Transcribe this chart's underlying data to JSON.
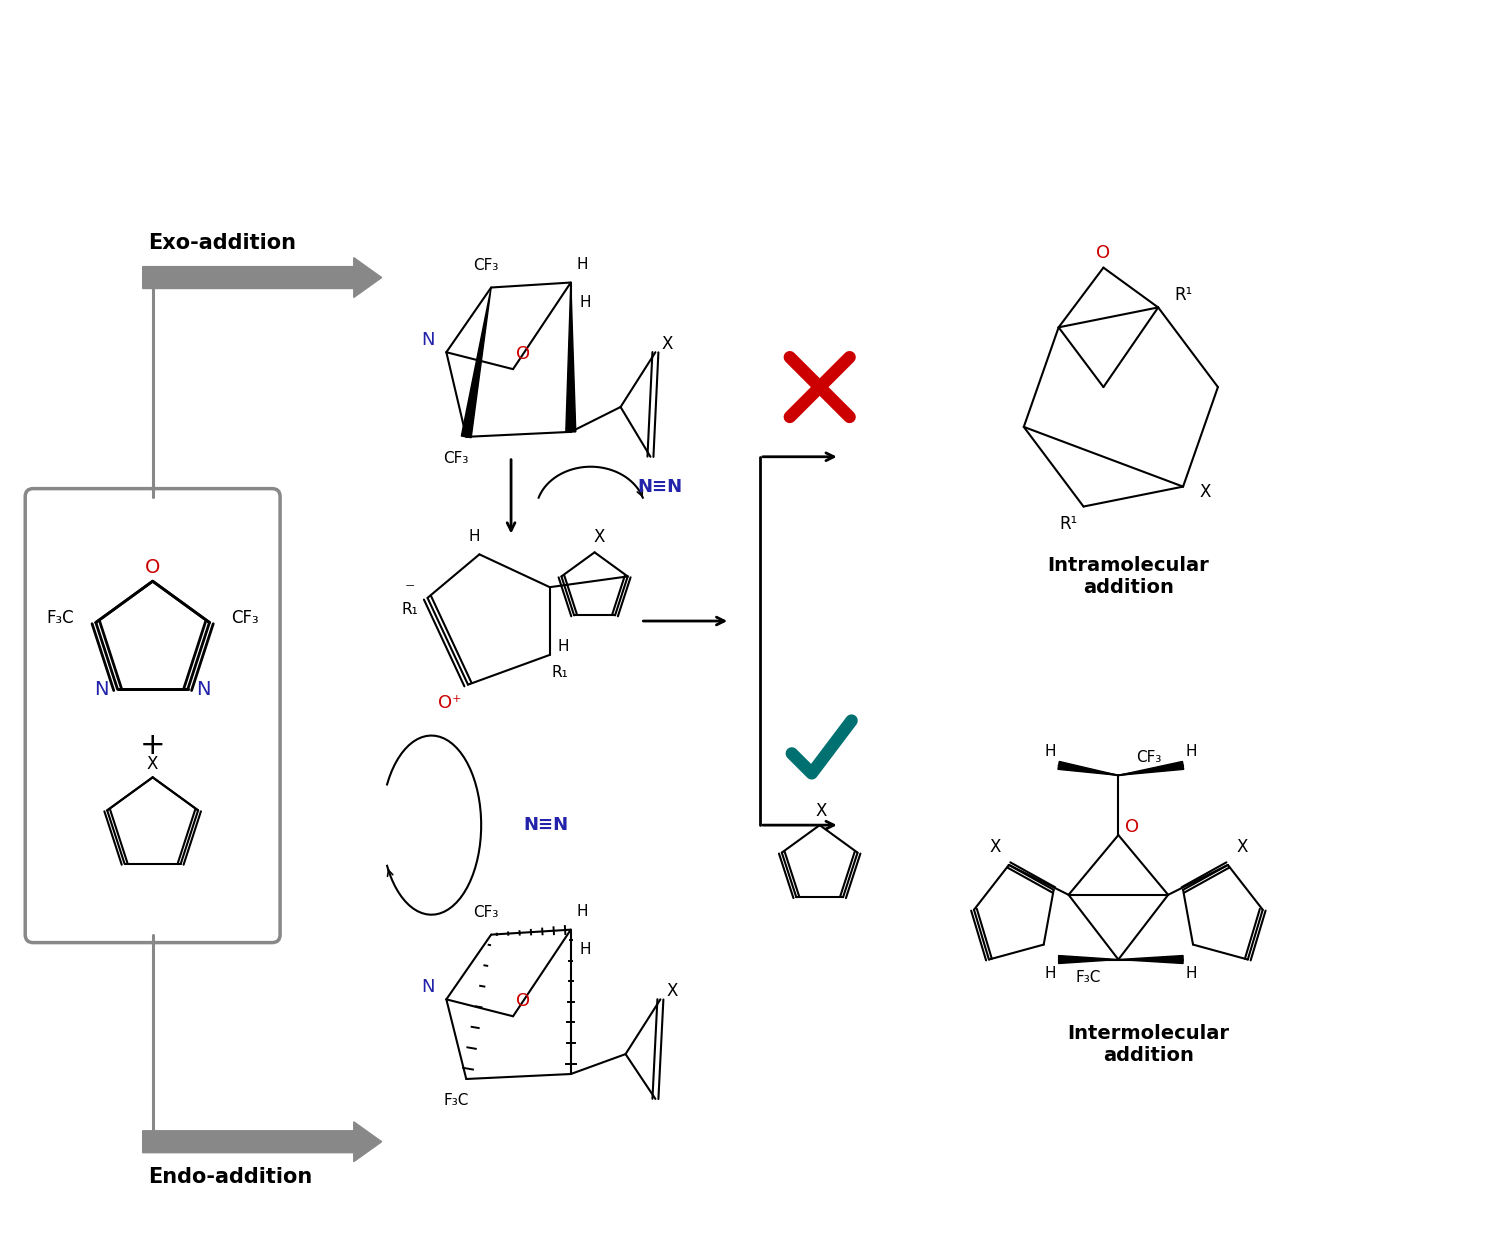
{
  "fig_width": 15.0,
  "fig_height": 12.56,
  "dpi": 100,
  "bg_color": "#ffffff",
  "text_color": "#000000",
  "blue_color": "#2222aa",
  "red_color": "#cc0000",
  "teal_color": "#007070",
  "gray_color": "#888888",
  "exo_label": "Exo-addition",
  "endo_label": "Endo-addition",
  "intramolecular_label": "Intramolecular\naddition",
  "intermolecular_label": "Intermolecular\naddition"
}
